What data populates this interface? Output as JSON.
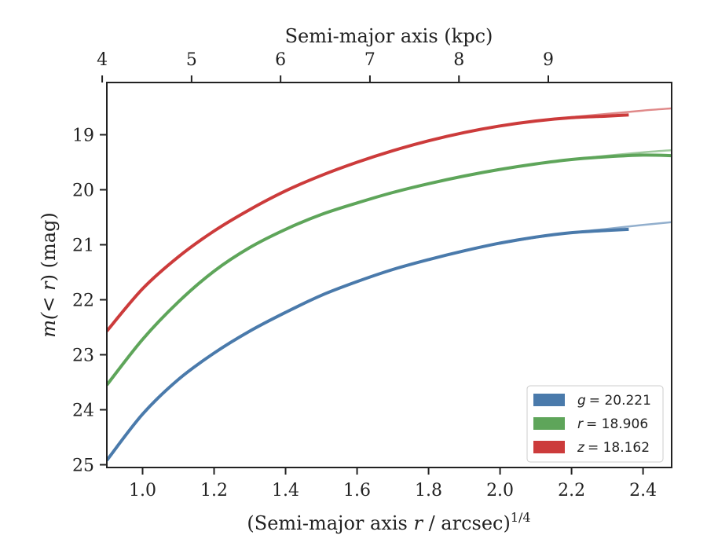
{
  "chart_data": {
    "type": "line",
    "xlabel": "(Semi-major axis r / arcsec)^1/4",
    "xlabel_parts": {
      "main": "(Semi-major axis ",
      "var": "r",
      "mid": " / arcsec)",
      "exp": "1/4"
    },
    "x2label": "Semi-major axis (kpc)",
    "ylabel": "m(<r) (mag)",
    "ylabel_parts": {
      "main": "m(",
      "var": "< r",
      "end": ") (mag)"
    },
    "xlim": [
      0.9,
      2.48
    ],
    "ylim": [
      25.05,
      18.05
    ],
    "y_inverted": true,
    "x_ticks": [
      "1.0",
      "1.2",
      "1.4",
      "1.6",
      "1.8",
      "2.0",
      "2.2",
      "2.4"
    ],
    "y_ticks": [
      "19",
      "20",
      "21",
      "22",
      "23",
      "24",
      "25"
    ],
    "x2_ticks": [
      "4",
      "5",
      "6",
      "7",
      "8",
      "9"
    ],
    "x2_tick_positions": [
      0.887,
      1.137,
      1.386,
      1.636,
      1.885,
      2.135
    ],
    "legend_position": "lower-right",
    "series": [
      {
        "name": "g = 20.221",
        "legend_var": "g",
        "legend_val": "= 20.221",
        "color": "#4a7aab",
        "x": [
          0.9,
          1.0,
          1.1,
          1.2,
          1.3,
          1.4,
          1.5,
          1.6,
          1.7,
          1.8,
          1.9,
          2.0,
          2.1,
          2.2,
          2.3,
          2.36
        ],
        "y": [
          24.92,
          24.08,
          23.45,
          22.97,
          22.57,
          22.23,
          21.92,
          21.67,
          21.45,
          21.27,
          21.11,
          20.97,
          20.86,
          20.78,
          20.74,
          20.72
        ],
        "fit_x": [
          2.0,
          2.1,
          2.2,
          2.3,
          2.4,
          2.48
        ],
        "fit_y": [
          20.98,
          20.87,
          20.78,
          20.71,
          20.64,
          20.59
        ]
      },
      {
        "name": "r = 18.906",
        "legend_var": "r",
        "legend_val": "= 18.906",
        "color": "#5ea55a",
        "x": [
          0.9,
          1.0,
          1.1,
          1.2,
          1.3,
          1.4,
          1.5,
          1.6,
          1.7,
          1.8,
          1.9,
          2.0,
          2.1,
          2.2,
          2.3,
          2.4,
          2.48
        ],
        "y": [
          23.55,
          22.72,
          22.04,
          21.48,
          21.05,
          20.72,
          20.45,
          20.24,
          20.05,
          19.89,
          19.75,
          19.63,
          19.53,
          19.45,
          19.4,
          19.37,
          19.38
        ],
        "fit_x": [
          2.1,
          2.2,
          2.3,
          2.4,
          2.48
        ],
        "fit_y": [
          19.53,
          19.45,
          19.38,
          19.32,
          19.28
        ]
      },
      {
        "name": "z = 18.162",
        "legend_var": "z",
        "legend_val": "= 18.162",
        "color": "#cc3b3b",
        "x": [
          0.9,
          1.0,
          1.1,
          1.2,
          1.3,
          1.4,
          1.5,
          1.6,
          1.7,
          1.8,
          1.9,
          2.0,
          2.1,
          2.2,
          2.3,
          2.36
        ],
        "y": [
          22.57,
          21.8,
          21.22,
          20.75,
          20.36,
          20.02,
          19.74,
          19.5,
          19.29,
          19.11,
          18.96,
          18.84,
          18.75,
          18.69,
          18.66,
          18.64
        ],
        "fit_x": [
          2.1,
          2.2,
          2.3,
          2.4,
          2.48
        ],
        "fit_y": [
          18.75,
          18.68,
          18.62,
          18.56,
          18.52
        ]
      }
    ]
  }
}
